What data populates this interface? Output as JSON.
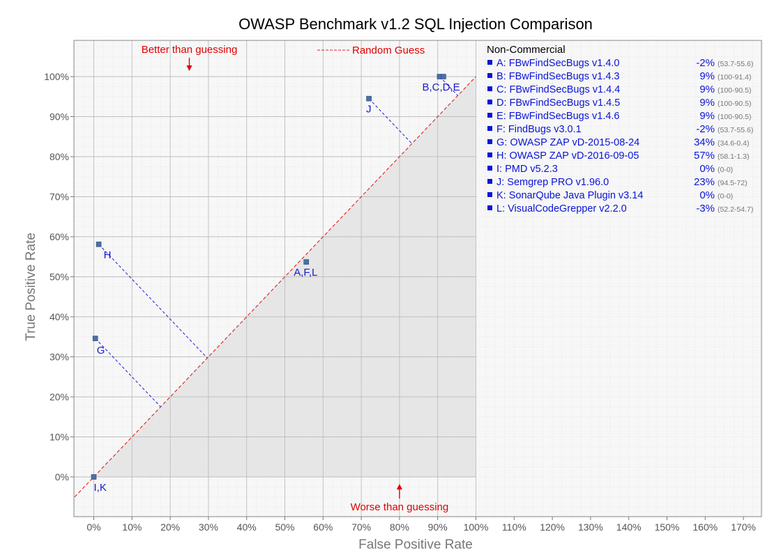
{
  "chart_data": {
    "type": "scatter",
    "title": "OWASP Benchmark v1.2 SQL Injection Comparison",
    "xlabel": "False Positive Rate",
    "ylabel": "True Positive Rate",
    "xlim": [
      -5,
      175
    ],
    "ylim": [
      -10,
      110
    ],
    "x_ticks": [
      "0%",
      "10%",
      "20%",
      "30%",
      "40%",
      "50%",
      "60%",
      "70%",
      "80%",
      "90%",
      "100%",
      "110%",
      "120%",
      "130%",
      "140%",
      "150%",
      "160%",
      "170%"
    ],
    "y_ticks": [
      "0%",
      "10%",
      "20%",
      "30%",
      "40%",
      "50%",
      "60%",
      "70%",
      "80%",
      "90%",
      "100%"
    ],
    "grid": true,
    "legend_position": "right",
    "colors": {
      "point": "#4a6fa5",
      "guess_line": "#e02020",
      "annotation": "#e00000",
      "text": "#0a14d6",
      "shade": "#e6e6e6"
    },
    "random_guess_label": "Random Guess",
    "annotations": {
      "better": "Better than guessing",
      "worse": "Worse than guessing"
    },
    "points": [
      {
        "label": "I,K",
        "x": 0,
        "y": 0
      },
      {
        "label": "G",
        "x": 0.4,
        "y": 34.6
      },
      {
        "label": "H",
        "x": 1.3,
        "y": 58.1
      },
      {
        "label": "A,F,L",
        "x": 55.6,
        "y": 53.7
      },
      {
        "label": "J",
        "x": 72,
        "y": 94.5
      },
      {
        "label": "B,C,D,E",
        "x": 90.5,
        "y": 100
      }
    ],
    "legend_heading": "Non-Commercial",
    "legend": [
      {
        "name": "A: FBwFindSecBugs v1.4.0",
        "score": "-2%",
        "range": "(53.7-55.6)"
      },
      {
        "name": "B: FBwFindSecBugs v1.4.3",
        "score": "9%",
        "range": "(100-91.4)"
      },
      {
        "name": "C: FBwFindSecBugs v1.4.4",
        "score": "9%",
        "range": "(100-90.5)"
      },
      {
        "name": "D: FBwFindSecBugs v1.4.5",
        "score": "9%",
        "range": "(100-90.5)"
      },
      {
        "name": "E: FBwFindSecBugs v1.4.6",
        "score": "9%",
        "range": "(100-90.5)"
      },
      {
        "name": "F: FindBugs v3.0.1",
        "score": "-2%",
        "range": "(53.7-55.6)"
      },
      {
        "name": "G: OWASP ZAP vD-2015-08-24",
        "score": "34%",
        "range": "(34.6-0.4)"
      },
      {
        "name": "H: OWASP ZAP vD-2016-09-05",
        "score": "57%",
        "range": "(58.1-1.3)"
      },
      {
        "name": "I:   PMD v5.2.3",
        "score": "0%",
        "range": "(0-0)"
      },
      {
        "name": "J:  Semgrep PRO v1.96.0",
        "score": "23%",
        "range": "(94.5-72)"
      },
      {
        "name": "K: SonarQube Java Plugin v3.14",
        "score": "0%",
        "range": "(0-0)"
      },
      {
        "name": "L: VisualCodeGrepper v2.2.0",
        "score": "-3%",
        "range": "(52.2-54.7)"
      }
    ]
  }
}
